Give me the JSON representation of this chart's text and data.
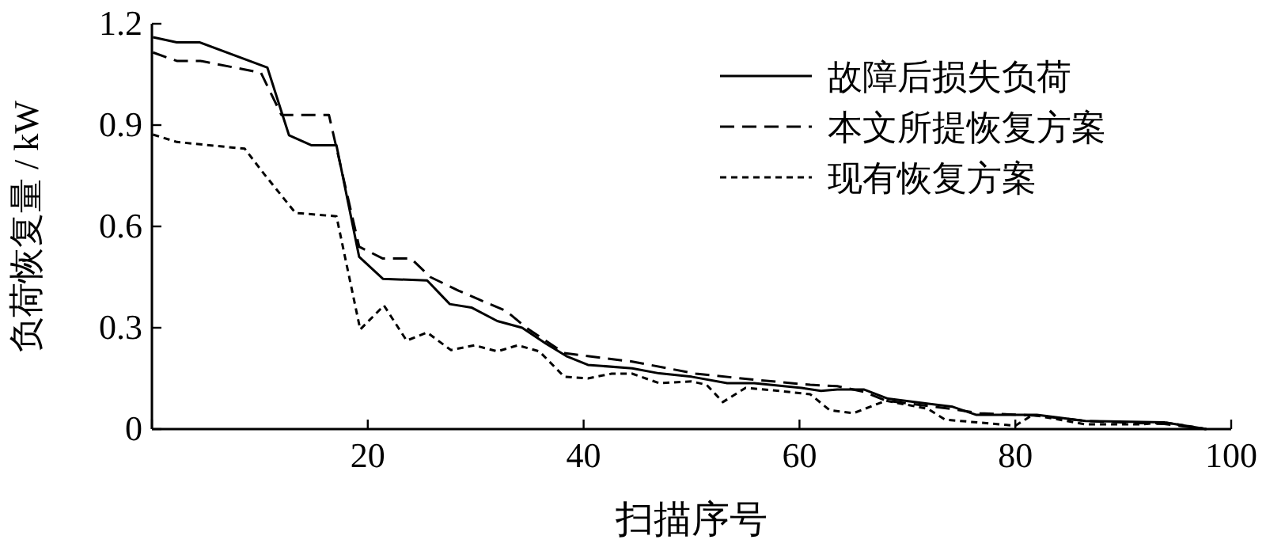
{
  "chart_data": {
    "type": "line",
    "xlabel": "扫描序号",
    "ylabel": "负荷恢复量 / kW",
    "xlim": [
      0,
      100
    ],
    "ylim": [
      0,
      1.2
    ],
    "xticks": [
      {
        "value": 0,
        "label": null
      },
      20,
      40,
      60,
      80,
      100
    ],
    "yticks": [
      0,
      0.3,
      0.6,
      0.9,
      1.2
    ],
    "grid": false,
    "legend": "top right",
    "marker": "none",
    "series": [
      {
        "name": "故障后损失负荷",
        "color": "#000000",
        "line_style": "solid",
        "x": [
          0.1,
          2.3,
          4.4,
          10.7,
          12.7,
          14.8,
          17.1,
          19.2,
          21.4,
          25.5,
          27.6,
          29.6,
          32,
          34.3,
          36.5,
          38.4,
          40.4,
          44.5,
          47,
          50,
          53.3,
          55.8,
          60.2,
          62,
          63.5,
          66,
          68.2,
          74.2,
          76.4,
          82,
          86.5,
          93.8,
          97.7
        ],
        "values": [
          1.16,
          1.145,
          1.145,
          1.07,
          0.87,
          0.84,
          0.84,
          0.51,
          0.445,
          0.44,
          0.37,
          0.36,
          0.32,
          0.3,
          0.253,
          0.216,
          0.19,
          0.18,
          0.165,
          0.155,
          0.136,
          0.136,
          0.122,
          0.113,
          0.117,
          0.117,
          0.09,
          0.066,
          0.042,
          0.042,
          0.024,
          0.02,
          0
        ]
      },
      {
        "name": "本文所提恢复方案",
        "color": "#000000",
        "line_style": "dashed",
        "x": [
          0.1,
          2.3,
          4.5,
          10.1,
          12,
          16.4,
          19.2,
          21.4,
          24,
          25.8,
          28.4,
          30.2,
          32.8,
          34.7,
          38.2,
          41.6,
          44.5,
          50.4,
          56.2,
          61,
          63.5,
          66,
          68,
          74,
          76.7,
          82,
          86.5,
          93.8,
          97.7
        ],
        "values": [
          1.115,
          1.09,
          1.09,
          1.055,
          0.93,
          0.93,
          0.54,
          0.505,
          0.505,
          0.45,
          0.41,
          0.385,
          0.35,
          0.3,
          0.225,
          0.211,
          0.2,
          0.164,
          0.145,
          0.131,
          0.127,
          0.11,
          0.084,
          0.06,
          0.047,
          0.04,
          0.024,
          0.015,
          0
        ]
      },
      {
        "name": "现有恢复方案",
        "color": "#000000",
        "line_style": "dotted",
        "x": [
          0.1,
          2.3,
          8.6,
          10.4,
          13.3,
          17.1,
          19.3,
          21.5,
          23.6,
          25.5,
          27.7,
          29.9,
          32,
          33.9,
          35.9,
          38.2,
          40.4,
          42.6,
          44.5,
          47,
          50,
          51.4,
          52.9,
          55,
          58.1,
          61,
          62.8,
          65,
          68,
          71.9,
          73.5,
          80,
          81.6,
          86.5,
          91.6,
          93.8,
          97.7
        ],
        "values": [
          0.872,
          0.85,
          0.83,
          0.755,
          0.64,
          0.63,
          0.295,
          0.366,
          0.262,
          0.286,
          0.234,
          0.248,
          0.23,
          0.248,
          0.23,
          0.155,
          0.15,
          0.164,
          0.164,
          0.136,
          0.141,
          0.131,
          0.08,
          0.122,
          0.113,
          0.103,
          0.056,
          0.047,
          0.084,
          0.06,
          0.028,
          0.01,
          0.042,
          0.014,
          0.014,
          0.02,
          0
        ]
      }
    ]
  }
}
